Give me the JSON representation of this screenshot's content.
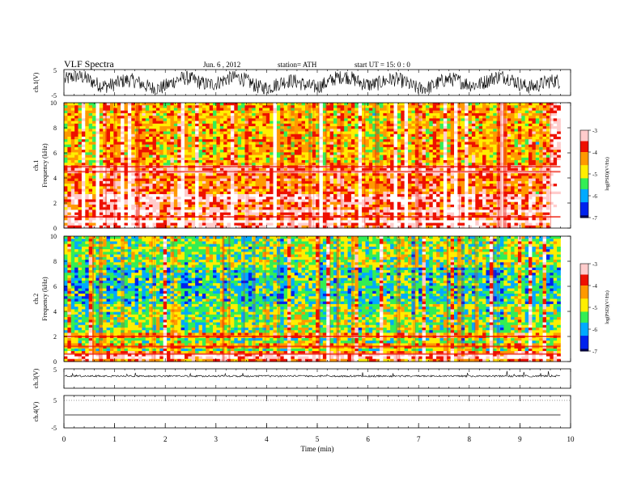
{
  "header": {
    "title": "VLF  Spectra",
    "date": "Jun. 6  , 2012",
    "station": "station= ATH",
    "start": "start  UT =   15: 0  : 0"
  },
  "colorbar_label": "log(PSD)(V²/Hz)",
  "colors": {
    "scale": [
      "#000055",
      "#0022ee",
      "#00aaff",
      "#33ee55",
      "#ffee00",
      "#ff9900",
      "#ee1100",
      "#ffcccc",
      "#ffffff"
    ]
  },
  "chart_data": [
    {
      "type": "line",
      "name": "ch1-waveform",
      "ylabel": "ch.1(V)",
      "ylim": [
        -5,
        5
      ],
      "yticks": [
        "5",
        "-5"
      ],
      "description_level": "noisy waveform spanning most of range"
    },
    {
      "type": "heatmap",
      "name": "ch1-spectrogram",
      "ylabel": "ch.1\nFrequency (kHz)",
      "ylabel_lines": [
        "ch.1",
        "Frequency  (kHz)"
      ],
      "xlim": [
        0,
        10
      ],
      "ylim": [
        0,
        10
      ],
      "yticks": [
        "0",
        "2",
        "4",
        "6",
        "8",
        "10"
      ],
      "data_extent_min": 9.8,
      "colorbar": {
        "ticks": [
          "-3",
          "-4",
          "-5",
          "-6",
          "-7"
        ],
        "range": [
          -7,
          -3
        ]
      }
    },
    {
      "type": "heatmap",
      "name": "ch2-spectrogram",
      "ylabel_lines": [
        "ch.2",
        "Frequency  (kHz)"
      ],
      "xlim": [
        0,
        10
      ],
      "ylim": [
        0,
        10
      ],
      "yticks": [
        "0",
        "2",
        "4",
        "6",
        "8",
        "10"
      ],
      "data_extent_min": 9.8,
      "colorbar": {
        "ticks": [
          "-3",
          "-4",
          "-5",
          "-6",
          "-7"
        ],
        "range": [
          -7,
          -3
        ]
      }
    },
    {
      "type": "line",
      "name": "ch3-waveform",
      "ylabel": "ch.3(V)",
      "ylim": [
        -5,
        5
      ],
      "yticks": [
        "5"
      ]
    },
    {
      "type": "line",
      "name": "ch4-waveform",
      "ylabel": "ch.4(V)",
      "ylim": [
        -5,
        5
      ],
      "yticks": [
        "5",
        "-5"
      ]
    }
  ],
  "xaxis": {
    "label": "Time  (min)",
    "ticks": [
      "0",
      "1",
      "2",
      "3",
      "4",
      "5",
      "6",
      "7",
      "8",
      "9",
      "10"
    ],
    "range": [
      0,
      10
    ]
  }
}
